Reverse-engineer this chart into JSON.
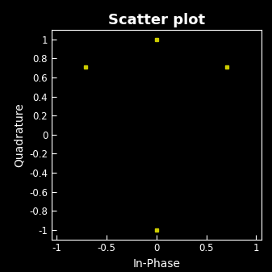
{
  "title": "Scatter plot",
  "xlabel": "In-Phase",
  "ylabel": "Quadrature",
  "background_color": "#000000",
  "text_color": "#ffffff",
  "marker_color": "#cccc00",
  "marker_style": "s",
  "marker_size": 3,
  "x_data": [
    -0.7071,
    0.0,
    0.7071,
    0.0
  ],
  "y_data": [
    0.7071,
    1.0,
    0.7071,
    -1.0
  ],
  "xlim": [
    -1.05,
    1.05
  ],
  "ylim": [
    -1.1,
    1.1
  ],
  "xticks": [
    -1,
    -0.5,
    0,
    0.5,
    1
  ],
  "yticks": [
    -1,
    -0.8,
    -0.6,
    -0.4,
    -0.2,
    0,
    0.2,
    0.4,
    0.6,
    0.8,
    1
  ],
  "xtick_labels": [
    "-1",
    "-0.5",
    "0",
    "0.5",
    "1"
  ],
  "ytick_labels": [
    "-1",
    "-0.8",
    "-0.6",
    "-0.4",
    "-0.2",
    "0",
    "0.2",
    "0.4",
    "0.6",
    "0.8",
    "1"
  ],
  "title_fontsize": 13,
  "label_fontsize": 10,
  "tick_fontsize": 8.5
}
